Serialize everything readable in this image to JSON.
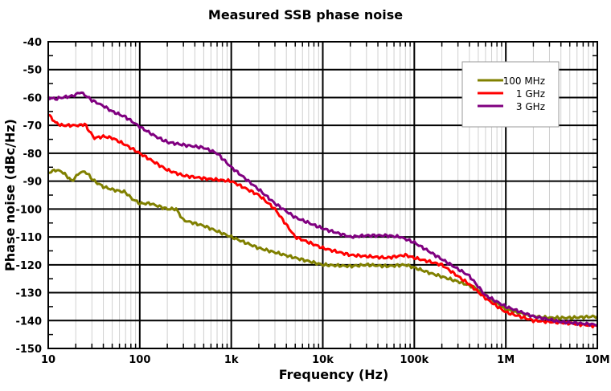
{
  "chart_data": {
    "type": "line",
    "title": "Measured SSB phase noise",
    "xlabel": "Frequency (Hz)",
    "ylabel": "Phase noise (dBc/Hz)",
    "xscale": "log",
    "xlim": [
      10,
      10000000
    ],
    "ylim": [
      -150,
      -40
    ],
    "grid": true,
    "legend_position": "top-right",
    "x_ticks": [
      {
        "value": 10,
        "label": "10"
      },
      {
        "value": 100,
        "label": "100"
      },
      {
        "value": 1000,
        "label": "1k"
      },
      {
        "value": 10000,
        "label": "10k"
      },
      {
        "value": 100000,
        "label": "100k"
      },
      {
        "value": 1000000,
        "label": "1M"
      },
      {
        "value": 10000000,
        "label": "10M"
      }
    ],
    "y_ticks": [
      -40,
      -50,
      -60,
      -70,
      -80,
      -90,
      -100,
      -110,
      -120,
      -130,
      -140,
      -150
    ],
    "series": [
      {
        "name": "100 MHz",
        "color": "#808000",
        "x": [
          10,
          12,
          14,
          17,
          18,
          22,
          25,
          28,
          32,
          40,
          50,
          70,
          80,
          100,
          130,
          200,
          250,
          300,
          500,
          1000,
          2000,
          5000,
          10000,
          20000,
          30000,
          50000,
          80000,
          100000,
          150000,
          300000,
          450000,
          600000,
          1000000,
          2000000,
          3000000,
          5000000,
          10000000
        ],
        "y": [
          -87,
          -86,
          -86.5,
          -89,
          -90,
          -87,
          -86.5,
          -88,
          -90,
          -92,
          -93,
          -94,
          -96,
          -98,
          -98,
          -100,
          -100,
          -104,
          -106,
          -110,
          -114,
          -117.5,
          -120,
          -120.5,
          -120,
          -120.5,
          -120,
          -121,
          -123,
          -126,
          -128,
          -131,
          -136,
          -138.5,
          -139,
          -139,
          -138.5
        ]
      },
      {
        "name": "1 GHz",
        "color": "#ff0000",
        "x": [
          10,
          12,
          14,
          18,
          22,
          25,
          28,
          32,
          40,
          50,
          70,
          100,
          200,
          300,
          500,
          1000,
          2000,
          3000,
          5000,
          10000,
          20000,
          50000,
          80000,
          100000,
          200000,
          400000,
          600000,
          1000000,
          2000000,
          5000000,
          10000000
        ],
        "y": [
          -66,
          -69,
          -70,
          -70,
          -70,
          -69.5,
          -72,
          -74.5,
          -74,
          -74.5,
          -77,
          -80,
          -86,
          -88,
          -89,
          -90,
          -95,
          -100,
          -110,
          -114,
          -116.5,
          -117.5,
          -116.5,
          -117.5,
          -120,
          -127,
          -132,
          -137,
          -140,
          -141,
          -142
        ]
      },
      {
        "name": "3 GHz",
        "color": "#800080",
        "x": [
          10,
          12,
          14,
          18,
          20,
          22,
          25,
          30,
          40,
          50,
          70,
          100,
          150,
          200,
          300,
          500,
          700,
          1000,
          2000,
          3000,
          5000,
          10000,
          20000,
          30000,
          50000,
          70000,
          100000,
          200000,
          400000,
          600000,
          1000000,
          2000000,
          4000000,
          10000000
        ],
        "y": [
          -60,
          -60.5,
          -60,
          -59.5,
          -59,
          -58,
          -59,
          -61,
          -63,
          -65,
          -67,
          -70.5,
          -74,
          -76,
          -77,
          -78,
          -80,
          -85,
          -93,
          -98,
          -103,
          -107,
          -110,
          -109.5,
          -109.5,
          -110,
          -112,
          -118,
          -124,
          -131,
          -135,
          -138.5,
          -140.5,
          -141.5
        ]
      }
    ]
  }
}
